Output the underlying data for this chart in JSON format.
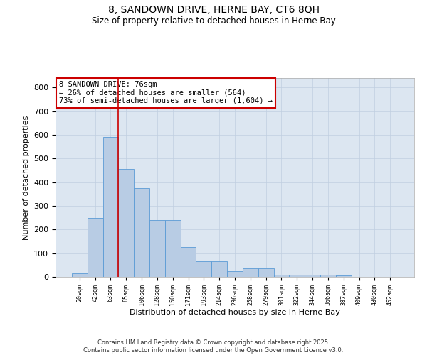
{
  "title_line1": "8, SANDOWN DRIVE, HERNE BAY, CT6 8QH",
  "title_line2": "Size of property relative to detached houses in Herne Bay",
  "xlabel": "Distribution of detached houses by size in Herne Bay",
  "ylabel": "Number of detached properties",
  "footer_line1": "Contains HM Land Registry data © Crown copyright and database right 2025.",
  "footer_line2": "Contains public sector information licensed under the Open Government Licence v3.0.",
  "annotation_line1": "8 SANDOWN DRIVE: 76sqm",
  "annotation_line2": "← 26% of detached houses are smaller (564)",
  "annotation_line3": "73% of semi-detached houses are larger (1,604) →",
  "categories": [
    "20sqm",
    "42sqm",
    "63sqm",
    "85sqm",
    "106sqm",
    "128sqm",
    "150sqm",
    "171sqm",
    "193sqm",
    "214sqm",
    "236sqm",
    "258sqm",
    "279sqm",
    "301sqm",
    "322sqm",
    "344sqm",
    "366sqm",
    "387sqm",
    "409sqm",
    "430sqm",
    "452sqm"
  ],
  "values": [
    15,
    248,
    590,
    455,
    375,
    240,
    240,
    125,
    65,
    65,
    25,
    35,
    35,
    10,
    10,
    10,
    10,
    5,
    0,
    0,
    0
  ],
  "bar_color": "#b8cce4",
  "bar_edge_color": "#5b9bd5",
  "plot_bg_color": "#dce6f1",
  "background_color": "#ffffff",
  "grid_color": "#c0cfe0",
  "vline_color": "#cc0000",
  "ylim": [
    0,
    840
  ],
  "yticks": [
    0,
    100,
    200,
    300,
    400,
    500,
    600,
    700,
    800
  ],
  "annotation_box_edge_color": "#cc0000",
  "annotation_box_face_color": "#ffffff"
}
